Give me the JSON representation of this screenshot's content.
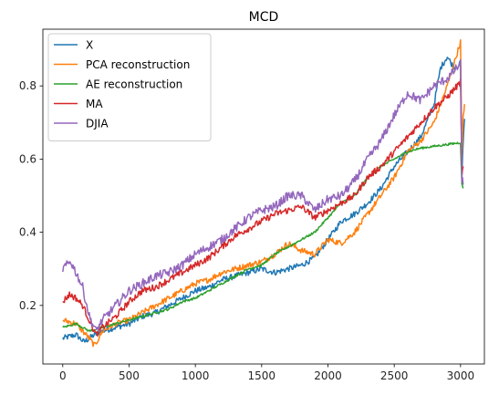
{
  "chart_data": {
    "type": "line",
    "title": "MCD",
    "xlabel": "",
    "ylabel": "",
    "xlim": [
      -150,
      3180
    ],
    "ylim": [
      0.04,
      0.955
    ],
    "xticks": [
      0,
      500,
      1000,
      1500,
      2000,
      2500,
      3000
    ],
    "yticks": [
      0.2,
      0.4,
      0.6,
      0.8
    ],
    "xtick_labels": [
      "0",
      "500",
      "1000",
      "1500",
      "2000",
      "2500",
      "3000"
    ],
    "ytick_labels": [
      "0.2",
      "0.4",
      "0.6",
      "0.8"
    ],
    "grid": false,
    "legend_position": "top-left",
    "series": [
      {
        "name": "X",
        "color": "#1f77b4",
        "noise": 0.008,
        "x": [
          0,
          100,
          160,
          200,
          240,
          300,
          400,
          500,
          600,
          700,
          800,
          900,
          1000,
          1100,
          1200,
          1300,
          1400,
          1500,
          1600,
          1700,
          1800,
          1900,
          2000,
          2100,
          2200,
          2300,
          2400,
          2500,
          2600,
          2700,
          2800,
          2850,
          2900,
          2950,
          3000,
          3010,
          3020,
          3030
        ],
        "y": [
          0.11,
          0.12,
          0.1,
          0.11,
          0.12,
          0.13,
          0.14,
          0.15,
          0.17,
          0.18,
          0.2,
          0.22,
          0.24,
          0.25,
          0.27,
          0.28,
          0.29,
          0.3,
          0.29,
          0.3,
          0.31,
          0.33,
          0.38,
          0.43,
          0.45,
          0.48,
          0.52,
          0.58,
          0.62,
          0.66,
          0.75,
          0.85,
          0.88,
          0.85,
          0.86,
          0.55,
          0.65,
          0.71
        ]
      },
      {
        "name": "PCA reconstruction",
        "color": "#ff7f0e",
        "noise": 0.008,
        "x": [
          0,
          100,
          200,
          240,
          300,
          400,
          500,
          600,
          700,
          800,
          900,
          1000,
          1100,
          1200,
          1300,
          1400,
          1500,
          1600,
          1700,
          1800,
          1900,
          2000,
          2100,
          2200,
          2300,
          2400,
          2500,
          2600,
          2700,
          2800,
          2900,
          2950,
          3000,
          3010,
          3020,
          3030
        ],
        "y": [
          0.16,
          0.15,
          0.11,
          0.09,
          0.13,
          0.15,
          0.16,
          0.18,
          0.2,
          0.22,
          0.24,
          0.26,
          0.27,
          0.29,
          0.3,
          0.31,
          0.32,
          0.34,
          0.37,
          0.35,
          0.34,
          0.38,
          0.37,
          0.4,
          0.45,
          0.5,
          0.55,
          0.62,
          0.65,
          0.7,
          0.8,
          0.86,
          0.92,
          0.6,
          0.72,
          0.75
        ]
      },
      {
        "name": "AE reconstruction",
        "color": "#2ca02c",
        "noise": 0.003,
        "x": [
          0,
          100,
          200,
          300,
          400,
          500,
          600,
          700,
          800,
          900,
          1000,
          1100,
          1200,
          1300,
          1400,
          1500,
          1600,
          1700,
          1800,
          1900,
          2000,
          2100,
          2200,
          2300,
          2400,
          2500,
          2600,
          2700,
          2800,
          2900,
          3000,
          3010,
          3020
        ],
        "y": [
          0.14,
          0.15,
          0.13,
          0.14,
          0.15,
          0.16,
          0.17,
          0.18,
          0.19,
          0.21,
          0.22,
          0.24,
          0.26,
          0.28,
          0.3,
          0.31,
          0.34,
          0.36,
          0.38,
          0.4,
          0.44,
          0.48,
          0.5,
          0.55,
          0.58,
          0.6,
          0.62,
          0.63,
          0.635,
          0.64,
          0.645,
          0.53,
          0.52
        ]
      },
      {
        "name": "MA",
        "color": "#d62728",
        "noise": 0.009,
        "x": [
          0,
          50,
          100,
          150,
          200,
          250,
          300,
          400,
          500,
          600,
          700,
          800,
          900,
          1000,
          1100,
          1200,
          1300,
          1400,
          1500,
          1600,
          1700,
          1800,
          1900,
          2000,
          2100,
          2200,
          2300,
          2400,
          2500,
          2600,
          2700,
          2800,
          2900,
          3000,
          3010,
          3020
        ],
        "y": [
          0.21,
          0.23,
          0.22,
          0.2,
          0.16,
          0.12,
          0.14,
          0.17,
          0.21,
          0.24,
          0.25,
          0.27,
          0.29,
          0.31,
          0.33,
          0.36,
          0.39,
          0.41,
          0.43,
          0.45,
          0.46,
          0.47,
          0.44,
          0.46,
          0.48,
          0.5,
          0.55,
          0.58,
          0.62,
          0.66,
          0.7,
          0.74,
          0.77,
          0.81,
          0.55,
          0.58
        ]
      },
      {
        "name": "DJIA",
        "color": "#9467bd",
        "noise": 0.012,
        "x": [
          0,
          30,
          60,
          100,
          150,
          200,
          250,
          300,
          400,
          500,
          600,
          700,
          800,
          900,
          1000,
          1100,
          1200,
          1300,
          1400,
          1500,
          1600,
          1700,
          1800,
          1900,
          2000,
          2100,
          2200,
          2300,
          2400,
          2500,
          2600,
          2700,
          2800,
          2900,
          3000,
          3010,
          3020
        ],
        "y": [
          0.3,
          0.31,
          0.32,
          0.29,
          0.25,
          0.17,
          0.13,
          0.16,
          0.2,
          0.24,
          0.26,
          0.28,
          0.29,
          0.31,
          0.34,
          0.36,
          0.38,
          0.41,
          0.44,
          0.46,
          0.47,
          0.5,
          0.5,
          0.46,
          0.49,
          0.5,
          0.54,
          0.6,
          0.65,
          0.72,
          0.78,
          0.76,
          0.8,
          0.82,
          0.86,
          0.55,
          0.53
        ]
      }
    ]
  }
}
